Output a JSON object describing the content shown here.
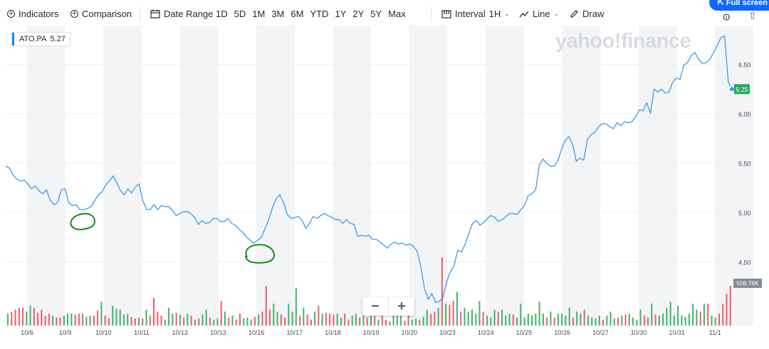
{
  "toolbar": {
    "indicators": "Indicators",
    "comparison": "Comparison",
    "date_range": "Date Range",
    "ranges": [
      "1D",
      "5D",
      "1M",
      "3M",
      "6M",
      "YTD",
      "1Y",
      "2Y",
      "5Y",
      "Max"
    ],
    "interval_label": "Interval",
    "interval_value": "1H",
    "chart_type": "Line",
    "draw": "Draw",
    "fullscreen": "Full screen"
  },
  "watermark": "yahoo!finance",
  "legend": {
    "ticker": "ATO.PA",
    "value": "5.27"
  },
  "zoom": {
    "minus": "−",
    "plus": "+"
  },
  "colors": {
    "line": "#3d9ae8",
    "vol_up": "#3fb36a",
    "vol_down": "#f05d66",
    "band": "#f3f4f6",
    "last_badge": "#21a95a",
    "vol_badge": "#838b95",
    "annotation": "#1a8a1a"
  },
  "chart_data": {
    "type": "line",
    "ticker": "ATO.PA",
    "x_tick_labels": [
      "10/6",
      "10/9",
      "10/10",
      "10/11",
      "10/12",
      "10/13",
      "10/16",
      "10/17",
      "10/18",
      "10/19",
      "10/20",
      "10/23",
      "10/24",
      "10/25",
      "10/26",
      "10/27",
      "10/30",
      "10/31",
      "11/1"
    ],
    "y_tick_labels": [
      "4.50",
      "5.00",
      "5.50",
      "6.00",
      "6.50"
    ],
    "ylim": [
      4.0,
      6.85
    ],
    "last_value": "6.25",
    "volume_last": "508.76K",
    "grid": "alternating day bands",
    "values": [
      5.47,
      5.45,
      5.38,
      5.34,
      5.32,
      5.33,
      5.29,
      5.24,
      5.27,
      5.22,
      5.19,
      5.23,
      5.13,
      5.08,
      5.1,
      5.23,
      5.24,
      5.1,
      5.07,
      5.08,
      5.03,
      5.03,
      5.04,
      5.06,
      5.12,
      5.18,
      5.21,
      5.28,
      5.32,
      5.37,
      5.3,
      5.22,
      5.18,
      5.24,
      5.2,
      5.26,
      5.29,
      5.12,
      5.03,
      5.03,
      5.08,
      5.03,
      5.07,
      5.06,
      5.06,
      5.02,
      4.97,
      4.99,
      5.01,
      5.01,
      4.99,
      4.95,
      4.88,
      4.92,
      4.89,
      4.9,
      4.94,
      4.94,
      4.91,
      4.91,
      4.94,
      4.89,
      4.87,
      4.83,
      4.8,
      4.75,
      4.72,
      4.69,
      4.72,
      4.75,
      4.84,
      4.93,
      5.05,
      5.14,
      5.18,
      5.1,
      4.98,
      4.94,
      4.95,
      4.96,
      4.92,
      4.84,
      4.89,
      4.96,
      4.94,
      4.97,
      4.99,
      4.97,
      4.95,
      4.93,
      4.93,
      4.89,
      4.93,
      4.89,
      4.88,
      4.76,
      4.77,
      4.76,
      4.77,
      4.73,
      4.73,
      4.7,
      4.67,
      4.64,
      4.68,
      4.7,
      4.68,
      4.69,
      4.67,
      4.68,
      4.66,
      4.61,
      4.46,
      4.23,
      4.12,
      4.18,
      4.09,
      4.1,
      4.14,
      4.3,
      4.4,
      4.46,
      4.62,
      4.6,
      4.68,
      4.79,
      4.89,
      4.92,
      4.87,
      4.9,
      4.94,
      4.97,
      4.95,
      4.91,
      4.93,
      4.96,
      4.99,
      4.99,
      4.98,
      5.03,
      5.07,
      5.17,
      5.19,
      5.23,
      5.48,
      5.54,
      5.5,
      5.47,
      5.47,
      5.52,
      5.64,
      5.73,
      5.77,
      5.69,
      5.52,
      5.55,
      5.53,
      5.74,
      5.79,
      5.81,
      5.87,
      5.9,
      5.9,
      5.87,
      5.85,
      5.91,
      5.88,
      5.92,
      5.91,
      5.92,
      5.97,
      6.04,
      6.03,
      6.11,
      6.01,
      6.25,
      6.22,
      6.25,
      6.21,
      6.22,
      6.32,
      6.36,
      6.35,
      6.49,
      6.52,
      6.59,
      6.62,
      6.55,
      6.51,
      6.52,
      6.55,
      6.62,
      6.69,
      6.77,
      6.79,
      6.32,
      6.25
    ],
    "volume": [
      [
        0.3,
        1
      ],
      [
        0.35,
        0
      ],
      [
        0.4,
        0
      ],
      [
        0.45,
        0
      ],
      [
        0.45,
        0
      ],
      [
        0.35,
        1
      ],
      [
        0.5,
        1
      ],
      [
        0.45,
        0
      ],
      [
        0.32,
        0
      ],
      [
        0.4,
        0
      ],
      [
        0.25,
        0
      ],
      [
        0.3,
        0
      ],
      [
        0.25,
        1
      ],
      [
        0.2,
        0
      ],
      [
        0.2,
        0
      ],
      [
        0.25,
        1
      ],
      [
        0.3,
        1
      ],
      [
        0.3,
        1
      ],
      [
        0.28,
        0
      ],
      [
        0.3,
        0
      ],
      [
        0.3,
        0
      ],
      [
        0.22,
        1
      ],
      [
        0.25,
        1
      ],
      [
        0.25,
        0
      ],
      [
        0.38,
        0
      ],
      [
        0.6,
        1
      ],
      [
        0.25,
        0
      ],
      [
        0.18,
        0
      ],
      [
        0.5,
        1
      ],
      [
        0.42,
        1
      ],
      [
        0.4,
        1
      ],
      [
        0.28,
        1
      ],
      [
        0.3,
        1
      ],
      [
        0.22,
        0
      ],
      [
        0.18,
        0
      ],
      [
        0.2,
        1
      ],
      [
        0.18,
        0
      ],
      [
        0.4,
        1
      ],
      [
        0.25,
        0
      ],
      [
        0.7,
        0
      ],
      [
        0.35,
        0
      ],
      [
        0.25,
        0
      ],
      [
        0.15,
        1
      ],
      [
        0.45,
        1
      ],
      [
        0.3,
        1
      ],
      [
        0.32,
        0
      ],
      [
        0.28,
        1
      ],
      [
        0.2,
        0
      ],
      [
        0.3,
        1
      ],
      [
        0.25,
        0
      ],
      [
        0.15,
        1
      ],
      [
        0.18,
        0
      ],
      [
        0.28,
        1
      ],
      [
        0.4,
        1
      ],
      [
        0.2,
        0
      ],
      [
        0.15,
        1
      ],
      [
        0.18,
        1
      ],
      [
        0.62,
        0
      ],
      [
        0.35,
        1
      ],
      [
        0.2,
        0
      ],
      [
        0.25,
        1
      ],
      [
        0.15,
        0
      ],
      [
        0.3,
        0
      ],
      [
        0.18,
        1
      ],
      [
        0.2,
        1
      ],
      [
        0.15,
        1
      ],
      [
        0.22,
        0
      ],
      [
        0.28,
        1
      ],
      [
        0.35,
        0
      ],
      [
        1.0,
        0
      ],
      [
        0.4,
        0
      ],
      [
        0.55,
        1
      ],
      [
        0.35,
        1
      ],
      [
        0.28,
        0
      ],
      [
        0.2,
        0
      ],
      [
        0.55,
        1
      ],
      [
        0.35,
        1
      ],
      [
        0.95,
        1
      ],
      [
        0.25,
        0
      ],
      [
        0.45,
        1
      ],
      [
        0.28,
        0
      ],
      [
        0.15,
        0
      ],
      [
        0.35,
        1
      ],
      [
        0.5,
        0
      ],
      [
        0.3,
        1
      ],
      [
        0.32,
        0
      ],
      [
        0.3,
        0
      ],
      [
        0.28,
        0
      ],
      [
        0.3,
        1
      ],
      [
        0.2,
        1
      ],
      [
        0.3,
        0
      ],
      [
        0.15,
        0
      ],
      [
        0.25,
        1
      ],
      [
        0.3,
        1
      ],
      [
        0.2,
        0
      ],
      [
        0.38,
        1
      ],
      [
        0.2,
        0
      ],
      [
        0.25,
        1
      ],
      [
        0.35,
        0
      ],
      [
        0.15,
        1
      ],
      [
        0.3,
        0
      ],
      [
        0.15,
        0
      ],
      [
        0.1,
        0
      ],
      [
        0.25,
        1
      ],
      [
        0.28,
        1
      ],
      [
        0.3,
        1
      ],
      [
        0.12,
        0
      ],
      [
        0.25,
        0
      ],
      [
        0.15,
        1
      ],
      [
        0.18,
        1
      ],
      [
        0.15,
        0
      ],
      [
        0.22,
        1
      ],
      [
        0.4,
        1
      ],
      [
        0.3,
        0
      ],
      [
        0.35,
        0
      ],
      [
        0.45,
        1
      ],
      [
        1.72,
        0
      ],
      [
        0.55,
        1
      ],
      [
        0.52,
        0
      ],
      [
        0.62,
        0
      ],
      [
        0.85,
        1
      ],
      [
        0.35,
        0
      ],
      [
        0.45,
        1
      ],
      [
        0.35,
        1
      ],
      [
        0.4,
        1
      ],
      [
        0.3,
        1
      ],
      [
        0.62,
        1
      ],
      [
        0.35,
        0
      ],
      [
        0.25,
        1
      ],
      [
        0.2,
        1
      ],
      [
        0.4,
        1
      ],
      [
        0.35,
        0
      ],
      [
        0.4,
        1
      ],
      [
        0.25,
        1
      ],
      [
        0.3,
        1
      ],
      [
        0.28,
        0
      ],
      [
        0.2,
        1
      ],
      [
        0.55,
        1
      ],
      [
        0.2,
        1
      ],
      [
        0.3,
        1
      ],
      [
        0.25,
        1
      ],
      [
        0.3,
        1
      ],
      [
        0.6,
        1
      ],
      [
        0.3,
        1
      ],
      [
        0.2,
        0
      ],
      [
        0.35,
        1
      ],
      [
        0.2,
        0
      ],
      [
        0.3,
        1
      ],
      [
        0.3,
        1
      ],
      [
        0.25,
        1
      ],
      [
        0.45,
        1
      ],
      [
        0.2,
        0
      ],
      [
        0.35,
        1
      ],
      [
        0.3,
        1
      ],
      [
        0.4,
        0
      ],
      [
        0.25,
        1
      ],
      [
        0.2,
        1
      ],
      [
        0.18,
        1
      ],
      [
        0.25,
        1
      ],
      [
        0.15,
        0
      ],
      [
        0.25,
        1
      ],
      [
        0.35,
        1
      ],
      [
        0.18,
        1
      ],
      [
        0.2,
        0
      ],
      [
        0.25,
        1
      ],
      [
        0.28,
        0
      ],
      [
        0.3,
        1
      ],
      [
        0.2,
        1
      ],
      [
        0.15,
        1
      ],
      [
        0.4,
        1
      ],
      [
        0.25,
        0
      ],
      [
        0.2,
        0
      ],
      [
        0.55,
        1
      ],
      [
        0.28,
        0
      ],
      [
        0.25,
        1
      ],
      [
        0.3,
        1
      ],
      [
        0.45,
        1
      ],
      [
        0.6,
        1
      ],
      [
        0.25,
        1
      ],
      [
        0.5,
        1
      ],
      [
        0.25,
        1
      ],
      [
        0.22,
        1
      ],
      [
        0.3,
        1
      ],
      [
        0.55,
        1
      ],
      [
        0.4,
        1
      ],
      [
        0.35,
        0
      ],
      [
        0.55,
        1
      ],
      [
        0.55,
        0
      ],
      [
        0.25,
        1
      ],
      [
        0.2,
        1
      ],
      [
        0.3,
        0
      ],
      [
        0.55,
        0
      ],
      [
        0.8,
        0
      ],
      [
        1.0,
        0
      ]
    ],
    "annotations": [
      "hand-drawn green circle near 10/9 low",
      "hand-drawn green circle near 10/16 low"
    ]
  }
}
